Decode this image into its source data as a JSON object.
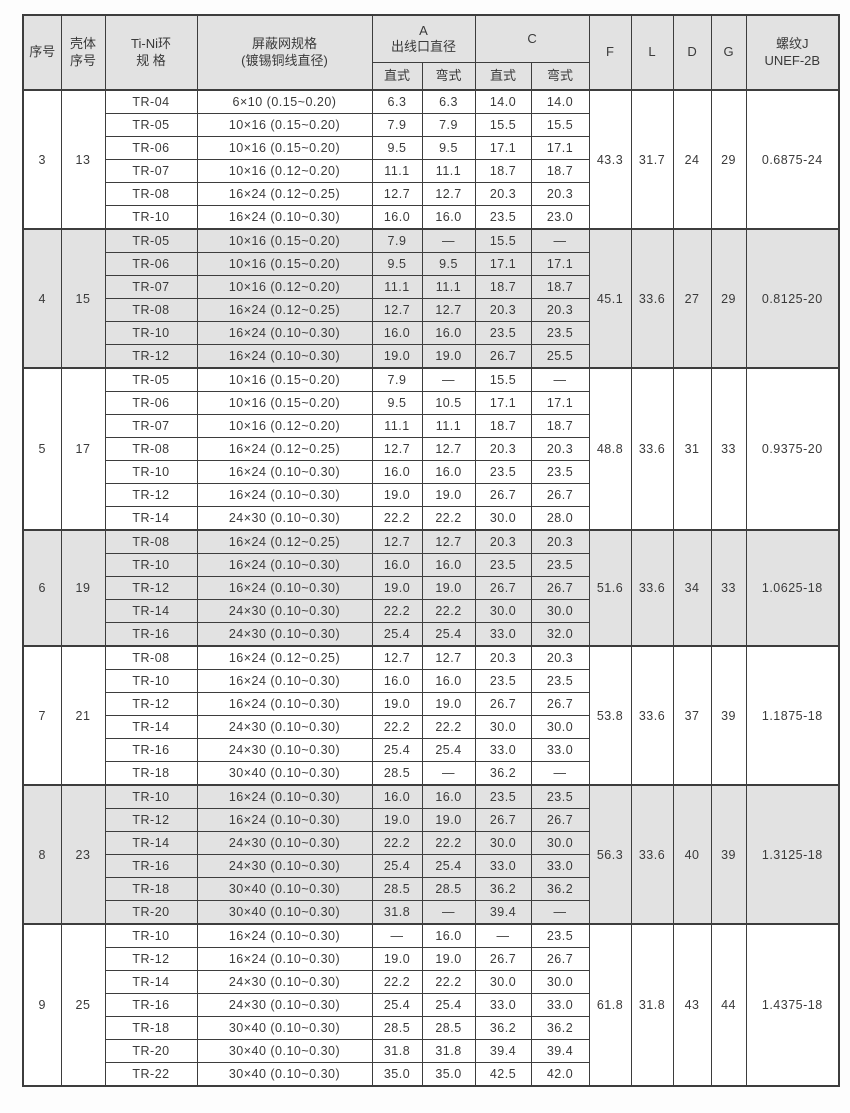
{
  "colors": {
    "shaded_band": "#e2e2e2",
    "grid_line": "#3d3d3d",
    "text": "#3a3a3a",
    "background": "#ffffff"
  },
  "table": {
    "headers": {
      "serial": "序号",
      "shell_serial": "壳体\n序号",
      "tini_ring": "Ti-Ni环\n规  格",
      "mesh_spec": "屏蔽网规格\n(镀锡铜线直径)",
      "a_outlet": "A\n出线口直径",
      "c": "C",
      "straight": "直式",
      "bent": "弯式",
      "f": "F",
      "l": "L",
      "d": "D",
      "g": "G",
      "thread": "螺纹J\nUNEF-2B"
    },
    "groups": [
      {
        "xuhao": "3",
        "keti": "13",
        "f": "43.3",
        "l": "31.7",
        "d": "24",
        "g": "29",
        "thread": "0.6875-24",
        "shaded": false,
        "rows": [
          [
            "TR-04",
            "6×10 (0.15~0.20)",
            "6.3",
            "6.3",
            "14.0",
            "14.0"
          ],
          [
            "TR-05",
            "10×16 (0.15~0.20)",
            "7.9",
            "7.9",
            "15.5",
            "15.5"
          ],
          [
            "TR-06",
            "10×16 (0.15~0.20)",
            "9.5",
            "9.5",
            "17.1",
            "17.1"
          ],
          [
            "TR-07",
            "10×16 (0.12~0.20)",
            "11.1",
            "11.1",
            "18.7",
            "18.7"
          ],
          [
            "TR-08",
            "16×24 (0.12~0.25)",
            "12.7",
            "12.7",
            "20.3",
            "20.3"
          ],
          [
            "TR-10",
            "16×24 (0.10~0.30)",
            "16.0",
            "16.0",
            "23.5",
            "23.0"
          ]
        ]
      },
      {
        "xuhao": "4",
        "keti": "15",
        "f": "45.1",
        "l": "33.6",
        "d": "27",
        "g": "29",
        "thread": "0.8125-20",
        "shaded": true,
        "rows": [
          [
            "TR-05",
            "10×16 (0.15~0.20)",
            "7.9",
            "—",
            "15.5",
            "—"
          ],
          [
            "TR-06",
            "10×16 (0.15~0.20)",
            "9.5",
            "9.5",
            "17.1",
            "17.1"
          ],
          [
            "TR-07",
            "10×16 (0.12~0.20)",
            "11.1",
            "11.1",
            "18.7",
            "18.7"
          ],
          [
            "TR-08",
            "16×24 (0.12~0.25)",
            "12.7",
            "12.7",
            "20.3",
            "20.3"
          ],
          [
            "TR-10",
            "16×24 (0.10~0.30)",
            "16.0",
            "16.0",
            "23.5",
            "23.5"
          ],
          [
            "TR-12",
            "16×24 (0.10~0.30)",
            "19.0",
            "19.0",
            "26.7",
            "25.5"
          ]
        ]
      },
      {
        "xuhao": "5",
        "keti": "17",
        "f": "48.8",
        "l": "33.6",
        "d": "31",
        "g": "33",
        "thread": "0.9375-20",
        "shaded": false,
        "rows": [
          [
            "TR-05",
            "10×16 (0.15~0.20)",
            "7.9",
            "—",
            "15.5",
            "—"
          ],
          [
            "TR-06",
            "10×16 (0.15~0.20)",
            "9.5",
            "10.5",
            "17.1",
            "17.1"
          ],
          [
            "TR-07",
            "10×16 (0.12~0.20)",
            "11.1",
            "11.1",
            "18.7",
            "18.7"
          ],
          [
            "TR-08",
            "16×24 (0.12~0.25)",
            "12.7",
            "12.7",
            "20.3",
            "20.3"
          ],
          [
            "TR-10",
            "16×24 (0.10~0.30)",
            "16.0",
            "16.0",
            "23.5",
            "23.5"
          ],
          [
            "TR-12",
            "16×24 (0.10~0.30)",
            "19.0",
            "19.0",
            "26.7",
            "26.7"
          ],
          [
            "TR-14",
            "24×30 (0.10~0.30)",
            "22.2",
            "22.2",
            "30.0",
            "28.0"
          ]
        ]
      },
      {
        "xuhao": "6",
        "keti": "19",
        "f": "51.6",
        "l": "33.6",
        "d": "34",
        "g": "33",
        "thread": "1.0625-18",
        "shaded": true,
        "rows": [
          [
            "TR-08",
            "16×24 (0.12~0.25)",
            "12.7",
            "12.7",
            "20.3",
            "20.3"
          ],
          [
            "TR-10",
            "16×24 (0.10~0.30)",
            "16.0",
            "16.0",
            "23.5",
            "23.5"
          ],
          [
            "TR-12",
            "16×24 (0.10~0.30)",
            "19.0",
            "19.0",
            "26.7",
            "26.7"
          ],
          [
            "TR-14",
            "24×30 (0.10~0.30)",
            "22.2",
            "22.2",
            "30.0",
            "30.0"
          ],
          [
            "TR-16",
            "24×30 (0.10~0.30)",
            "25.4",
            "25.4",
            "33.0",
            "32.0"
          ]
        ]
      },
      {
        "xuhao": "7",
        "keti": "21",
        "f": "53.8",
        "l": "33.6",
        "d": "37",
        "g": "39",
        "thread": "1.1875-18",
        "shaded": false,
        "rows": [
          [
            "TR-08",
            "16×24 (0.12~0.25)",
            "12.7",
            "12.7",
            "20.3",
            "20.3"
          ],
          [
            "TR-10",
            "16×24 (0.10~0.30)",
            "16.0",
            "16.0",
            "23.5",
            "23.5"
          ],
          [
            "TR-12",
            "16×24 (0.10~0.30)",
            "19.0",
            "19.0",
            "26.7",
            "26.7"
          ],
          [
            "TR-14",
            "24×30 (0.10~0.30)",
            "22.2",
            "22.2",
            "30.0",
            "30.0"
          ],
          [
            "TR-16",
            "24×30 (0.10~0.30)",
            "25.4",
            "25.4",
            "33.0",
            "33.0"
          ],
          [
            "TR-18",
            "30×40 (0.10~0.30)",
            "28.5",
            "—",
            "36.2",
            "—"
          ]
        ]
      },
      {
        "xuhao": "8",
        "keti": "23",
        "f": "56.3",
        "l": "33.6",
        "d": "40",
        "g": "39",
        "thread": "1.3125-18",
        "shaded": true,
        "rows": [
          [
            "TR-10",
            "16×24 (0.10~0.30)",
            "16.0",
            "16.0",
            "23.5",
            "23.5"
          ],
          [
            "TR-12",
            "16×24 (0.10~0.30)",
            "19.0",
            "19.0",
            "26.7",
            "26.7"
          ],
          [
            "TR-14",
            "24×30 (0.10~0.30)",
            "22.2",
            "22.2",
            "30.0",
            "30.0"
          ],
          [
            "TR-16",
            "24×30 (0.10~0.30)",
            "25.4",
            "25.4",
            "33.0",
            "33.0"
          ],
          [
            "TR-18",
            "30×40 (0.10~0.30)",
            "28.5",
            "28.5",
            "36.2",
            "36.2"
          ],
          [
            "TR-20",
            "30×40 (0.10~0.30)",
            "31.8",
            "—",
            "39.4",
            "—"
          ]
        ]
      },
      {
        "xuhao": "9",
        "keti": "25",
        "f": "61.8",
        "l": "31.8",
        "d": "43",
        "g": "44",
        "thread": "1.4375-18",
        "shaded": false,
        "rows": [
          [
            "TR-10",
            "16×24 (0.10~0.30)",
            "—",
            "16.0",
            "—",
            "23.5"
          ],
          [
            "TR-12",
            "16×24 (0.10~0.30)",
            "19.0",
            "19.0",
            "26.7",
            "26.7"
          ],
          [
            "TR-14",
            "24×30 (0.10~0.30)",
            "22.2",
            "22.2",
            "30.0",
            "30.0"
          ],
          [
            "TR-16",
            "24×30 (0.10~0.30)",
            "25.4",
            "25.4",
            "33.0",
            "33.0"
          ],
          [
            "TR-18",
            "30×40 (0.10~0.30)",
            "28.5",
            "28.5",
            "36.2",
            "36.2"
          ],
          [
            "TR-20",
            "30×40 (0.10~0.30)",
            "31.8",
            "31.8",
            "39.4",
            "39.4"
          ],
          [
            "TR-22",
            "30×40 (0.10~0.30)",
            "35.0",
            "35.0",
            "42.5",
            "42.0"
          ]
        ]
      }
    ]
  }
}
